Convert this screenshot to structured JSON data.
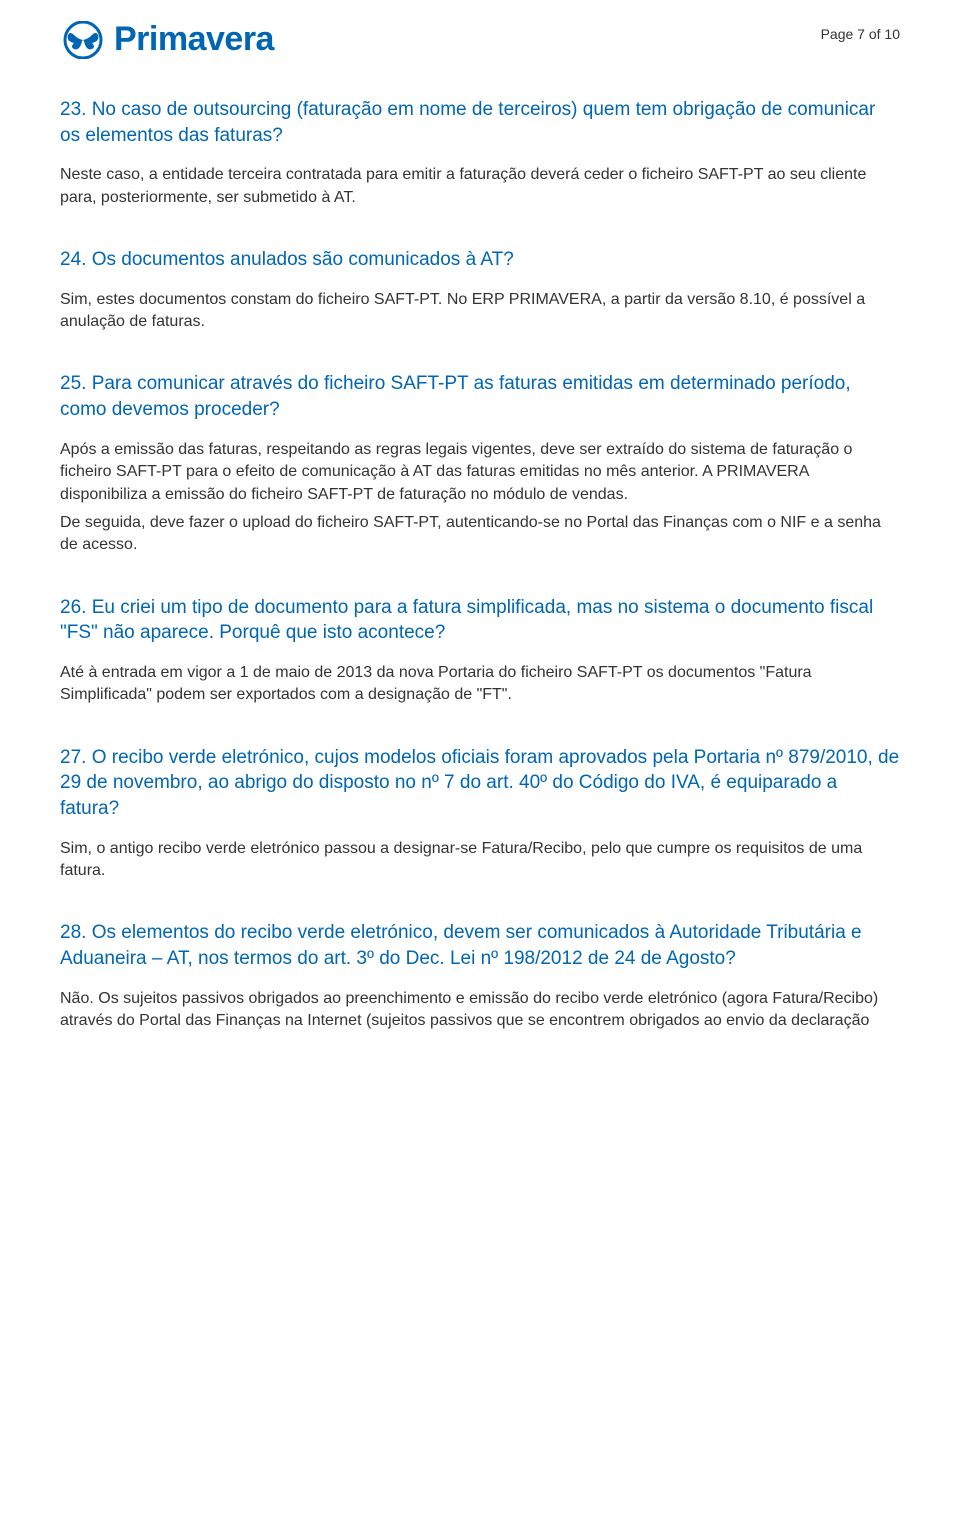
{
  "brand": {
    "name": "Primavera"
  },
  "page_indicator": "Page 7 of 10",
  "colors": {
    "heading": "#0066b3",
    "body": "#333333",
    "background": "#ffffff"
  },
  "typography": {
    "heading_fontsize": 19,
    "body_fontsize": 16,
    "logo_fontsize": 34
  },
  "qa": [
    {
      "q": "23. No caso de outsourcing (faturação em nome de terceiros) quem tem obrigação de comunicar os elementos das faturas?",
      "a": [
        "Neste caso, a entidade terceira contratada para emitir a faturação deverá ceder o ficheiro SAFT-PT ao seu cliente para, posteriormente, ser submetido à AT."
      ]
    },
    {
      "q": "24. Os documentos anulados são comunicados à AT?",
      "a": [
        "Sim, estes documentos constam do ficheiro SAFT-PT. No ERP PRIMAVERA, a partir da versão 8.10, é possível a anulação de faturas."
      ]
    },
    {
      "q": "25. Para comunicar através do ficheiro SAFT-PT as faturas emitidas em determinado período, como devemos proceder?",
      "a": [
        "Após a emissão das faturas, respeitando as regras legais vigentes, deve ser extraído do sistema de faturação o ficheiro SAFT-PT para o efeito de comunicação à AT das faturas emitidas no mês anterior. A PRIMAVERA disponibiliza a emissão do ficheiro SAFT-PT de faturação no módulo de vendas.",
        "De seguida, deve fazer o upload do ficheiro SAFT-PT, autenticando-se no Portal das Finanças com o NIF e a senha de acesso."
      ]
    },
    {
      "q": "26. Eu criei um tipo de documento para a fatura simplificada, mas no sistema o documento fiscal \"FS\" não aparece. Porquê que isto acontece?",
      "a": [
        "Até à entrada em vigor a 1 de maio de 2013 da nova Portaria do ficheiro SAFT-PT os documentos \"Fatura Simplificada\" podem ser exportados com a designação de \"FT\"."
      ]
    },
    {
      "q": "27. O recibo verde eletrónico, cujos modelos oficiais foram aprovados pela Portaria nº 879/2010, de 29 de novembro, ao abrigo do disposto no nº 7 do art. 40º do Código do IVA, é equiparado a fatura?",
      "a": [
        "Sim, o antigo recibo verde eletrónico passou a designar-se Fatura/Recibo, pelo que cumpre os requisitos de uma fatura."
      ]
    },
    {
      "q": "28. Os elementos do recibo verde eletrónico, devem ser comunicados à Autoridade Tributária e Aduaneira – AT, nos termos do art. 3º do Dec. Lei nº 198/2012 de 24 de Agosto?",
      "a": [
        "Não. Os sujeitos passivos obrigados ao preenchimento e emissão do recibo verde eletrónico (agora Fatura/Recibo) através do Portal das Finanças na Internet (sujeitos passivos que se encontrem obrigados ao envio da declaração"
      ]
    }
  ]
}
